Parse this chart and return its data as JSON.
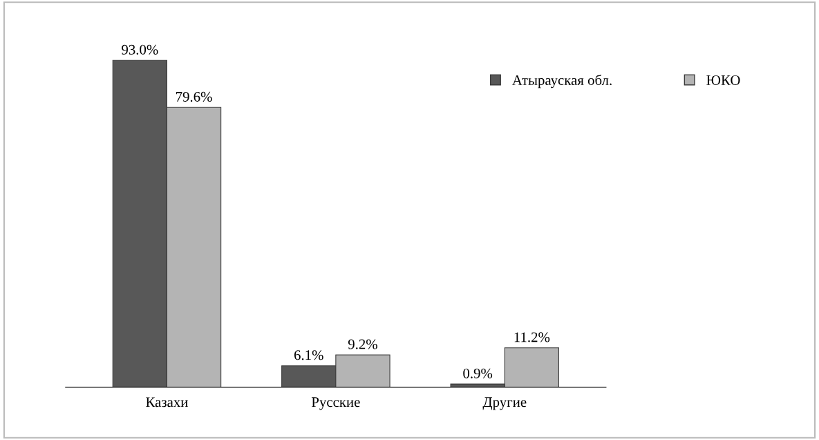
{
  "chart_data": {
    "type": "bar",
    "categories": [
      "Казахи",
      "Русские",
      "Другие"
    ],
    "series": [
      {
        "name": "Атырауская обл.",
        "color": "#585858",
        "values": [
          93.0,
          6.1,
          0.9
        ],
        "value_labels": [
          "93.0%",
          "6.1%",
          "0.9%"
        ]
      },
      {
        "name": "ЮКО",
        "color": "#b4b4b4",
        "values": [
          79.6,
          9.2,
          11.2
        ],
        "value_labels": [
          "79.6%",
          "9.2%",
          "11.2%"
        ]
      }
    ],
    "legend": "top right",
    "grid": false
  }
}
